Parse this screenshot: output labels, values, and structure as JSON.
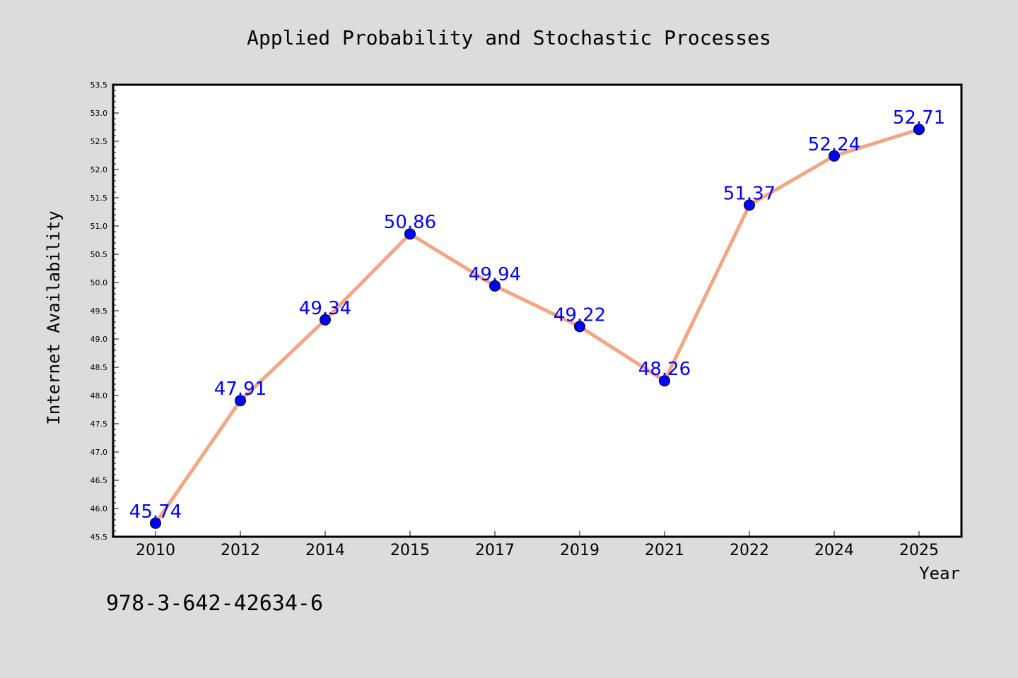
{
  "chart_data": {
    "type": "line",
    "title": "Applied Probability and Stochastic Processes",
    "xlabel": "Year",
    "ylabel": "Internet Availability",
    "categories": [
      "2010",
      "2012",
      "2014",
      "2015",
      "2017",
      "2019",
      "2021",
      "2022",
      "2024",
      "2025"
    ],
    "series": [
      {
        "values": [
          45.74,
          47.91,
          49.34,
          50.86,
          49.94,
          49.22,
          48.26,
          51.37,
          52.24,
          52.71
        ],
        "labels": [
          "45.74",
          "47.91",
          "49.34",
          "50.86",
          "49.94",
          "49.22",
          "48.26",
          "51.37",
          "52.24",
          "52.71"
        ],
        "line_color": "#f4a582",
        "marker_color": "#0000ff",
        "label_color": "#0000ff"
      }
    ],
    "ylim": [
      45.5,
      53.5
    ],
    "yticks": [
      "45.5",
      "46.0",
      "46.5",
      "47.0",
      "47.5",
      "48.0",
      "48.5",
      "49.0",
      "49.5",
      "50.0",
      "50.5",
      "51.0",
      "51.5",
      "52.0",
      "52.5",
      "53.0",
      "53.5"
    ],
    "grid": false,
    "background": "#dcdcdc",
    "plot_background": "#ffffff"
  },
  "annotation": "978-3-642-42634-6"
}
